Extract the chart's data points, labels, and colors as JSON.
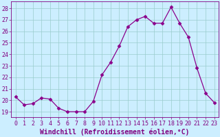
{
  "x": [
    0,
    1,
    2,
    3,
    4,
    5,
    6,
    7,
    8,
    9,
    10,
    11,
    12,
    13,
    14,
    15,
    16,
    17,
    18,
    19,
    20,
    21,
    22,
    23
  ],
  "y": [
    20.3,
    19.6,
    19.7,
    20.2,
    20.1,
    19.3,
    19.0,
    19.0,
    19.0,
    19.9,
    22.2,
    23.3,
    24.7,
    26.4,
    27.0,
    27.3,
    26.7,
    26.7,
    28.1,
    26.7,
    25.5,
    22.8,
    20.6,
    19.8
  ],
  "line_color": "#8b008b",
  "marker": "D",
  "marker_size": 2.5,
  "bg_color": "#cceeff",
  "grid_color": "#99cccc",
  "xlabel": "Windchill (Refroidissement éolien,°C)",
  "xlabel_fontsize": 7,
  "ylabel_ticks": [
    19,
    20,
    21,
    22,
    23,
    24,
    25,
    26,
    27,
    28
  ],
  "ylim": [
    18.5,
    28.6
  ],
  "xlim": [
    -0.5,
    23.5
  ],
  "tick_fontsize": 6,
  "axis_color": "#800080"
}
